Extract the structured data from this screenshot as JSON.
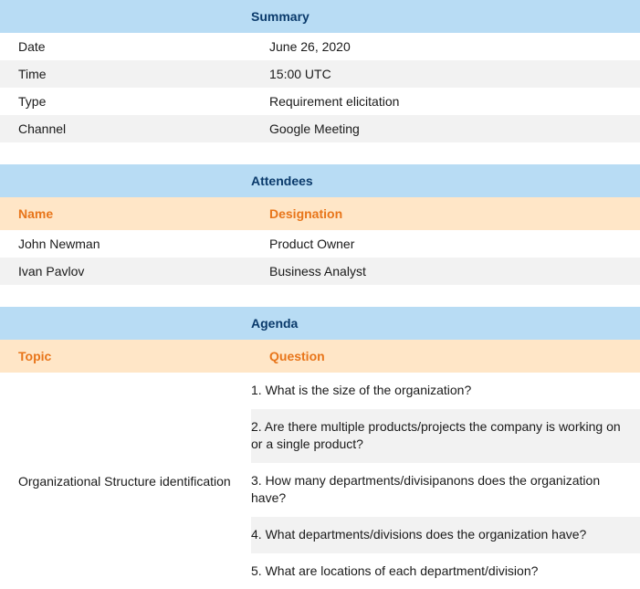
{
  "colors": {
    "section_header_bg": "#b8dcf4",
    "section_header_text": "#0a3a6b",
    "sub_header_bg": "#ffe6c7",
    "sub_header_text": "#e8751a",
    "stripe_even_bg": "#f2f2f2",
    "stripe_odd_bg": "#ffffff",
    "body_text": "#1a1a1a"
  },
  "summary": {
    "title": "Summary",
    "rows": [
      {
        "label": "Date",
        "value": "June 26, 2020"
      },
      {
        "label": "Time",
        "value": "15:00 UTC"
      },
      {
        "label": "Type",
        "value": "Requirement elicitation"
      },
      {
        "label": "Channel",
        "value": "Google Meeting"
      }
    ]
  },
  "attendees": {
    "title": "Attendees",
    "columns": {
      "left": "Name",
      "right": "Designation"
    },
    "rows": [
      {
        "name": "John Newman",
        "designation": "Product Owner"
      },
      {
        "name": "Ivan Pavlov",
        "designation": "Business Analyst"
      }
    ]
  },
  "agenda": {
    "title": "Agenda",
    "columns": {
      "left": "Topic",
      "right": "Question"
    },
    "topic": "Organizational Structure identification",
    "questions": [
      "1. What is the size of the organization?",
      "2. Are there multiple products/projects the company is working on or a single product?",
      "3. How many departments/divisipanons does the organization have?",
      "4. What departments/divisions does the organization have?",
      "5. What are locations of each department/division?"
    ]
  }
}
